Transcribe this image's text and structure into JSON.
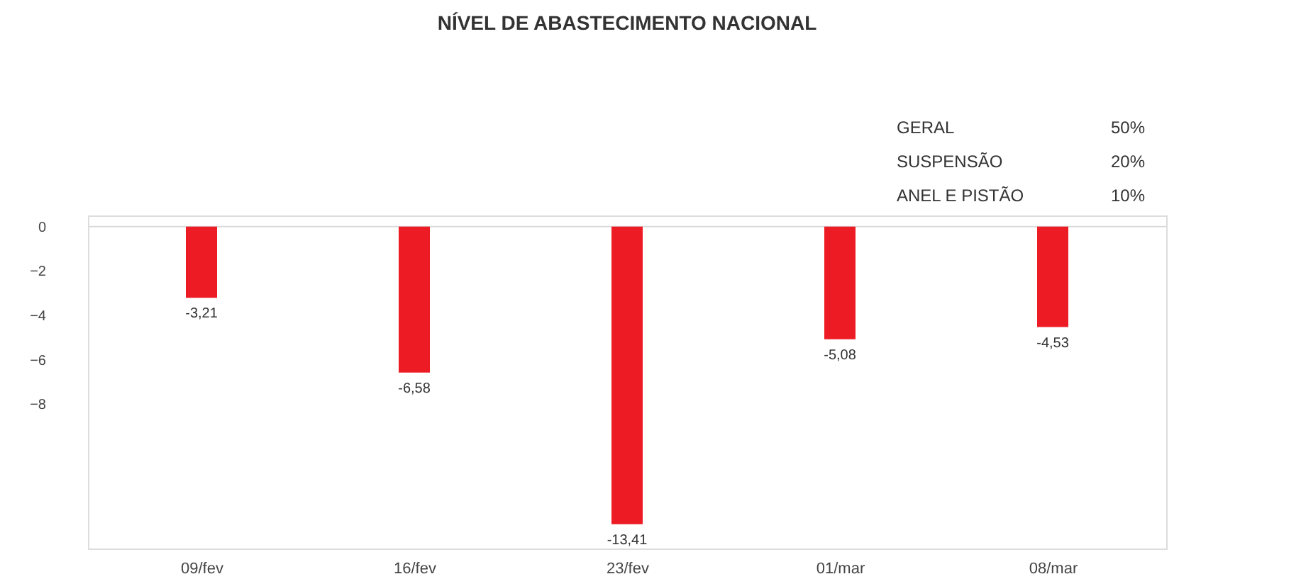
{
  "chart_data": {
    "type": "bar",
    "title": "NÍVEL DE ABASTECIMENTO NACIONAL",
    "categories": [
      "09/fev",
      "16/fev",
      "23/fev",
      "01/mar",
      "08/mar"
    ],
    "values": [
      -3.21,
      -6.58,
      -13.41,
      -5.08,
      -4.53
    ],
    "value_labels": [
      "-3,21",
      "-6,58",
      "-13,41",
      "-5,08",
      "-4,53"
    ],
    "color": "#ed1c24",
    "ylim": [
      -14.5,
      0.5
    ],
    "yticks": [
      0,
      -2,
      -4,
      -6,
      -8
    ],
    "grid": false,
    "ref_lines": [
      {
        "axis": "y",
        "value": 0,
        "color": "#d9d9d9"
      }
    ],
    "annotations": [
      "GERAL",
      "50%",
      "SUSPENSÃO",
      "20%",
      "ANEL E PISTÃO",
      "10%"
    ]
  }
}
